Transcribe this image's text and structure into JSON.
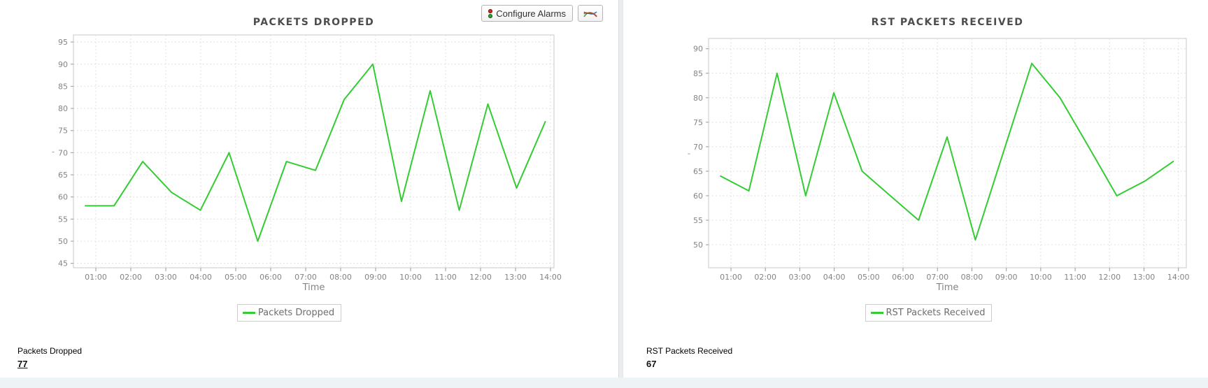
{
  "toolbar": {
    "configure_alarms_label": "Configure Alarms"
  },
  "colors": {
    "line_green": "#33cc33",
    "plot_border": "#c9c9c9",
    "grid": "#e0e0e0",
    "tick": "#999999",
    "axis_text": "#848484",
    "title_text": "#4d4d4d",
    "page_background": "#ebeef0",
    "bottom_strip": "#eef3f6"
  },
  "footers": [
    {
      "label": "Packets Dropped",
      "value": "77"
    },
    {
      "label": "RST Packets Received",
      "value": "67"
    }
  ],
  "chart_data": [
    {
      "type": "line",
      "title": "PACKETS DROPPED",
      "xlabel": "Time",
      "ylabel": "-",
      "grid": true,
      "legend_position": "bottom",
      "legend": [
        "Packets Dropped"
      ],
      "x_ticks": [
        "01:00",
        "02:00",
        "03:00",
        "04:00",
        "05:00",
        "06:00",
        "07:00",
        "08:00",
        "09:00",
        "10:00",
        "11:00",
        "12:00",
        "13:00",
        "14:00"
      ],
      "y_ticks": [
        45,
        50,
        55,
        60,
        65,
        70,
        75,
        80,
        85,
        90,
        95
      ],
      "xlim": [
        0.36,
        14.1
      ],
      "ylim": [
        44.0,
        96.6
      ],
      "x_hours": [
        0.7,
        1.52,
        2.34,
        3.17,
        3.99,
        4.81,
        5.63,
        6.45,
        7.28,
        8.1,
        8.92,
        9.74,
        10.56,
        11.39,
        12.21,
        13.03,
        13.85
      ],
      "series": [
        {
          "name": "Packets Dropped",
          "color": "#33cc33",
          "values": [
            58,
            58,
            68,
            61,
            57,
            70,
            50,
            68,
            66,
            82,
            90,
            59,
            84,
            57,
            81,
            62,
            77
          ]
        }
      ]
    },
    {
      "type": "line",
      "title": "RST PACKETS RECEIVED",
      "xlabel": "Time",
      "ylabel": "-",
      "grid": true,
      "legend_position": "bottom",
      "legend": [
        "RST Packets Received"
      ],
      "x_ticks": [
        "01:00",
        "02:00",
        "03:00",
        "04:00",
        "05:00",
        "06:00",
        "07:00",
        "08:00",
        "09:00",
        "10:00",
        "11:00",
        "12:00",
        "13:00",
        "14:00"
      ],
      "y_ticks": [
        50,
        55,
        60,
        65,
        70,
        75,
        80,
        85,
        90
      ],
      "xlim": [
        0.35,
        14.23
      ],
      "ylim": [
        45.3,
        92.1
      ],
      "x_hours": [
        0.7,
        1.52,
        2.34,
        3.17,
        3.99,
        4.81,
        5.63,
        6.45,
        7.28,
        8.1,
        8.92,
        9.74,
        10.56,
        11.39,
        12.21,
        13.03,
        13.85
      ],
      "series": [
        {
          "name": "RST Packets Received",
          "color": "#33cc33",
          "values": [
            64,
            61,
            85,
            60,
            81,
            65,
            60,
            55,
            72,
            51,
            69,
            87,
            80,
            70,
            60,
            63,
            67
          ]
        }
      ]
    }
  ]
}
